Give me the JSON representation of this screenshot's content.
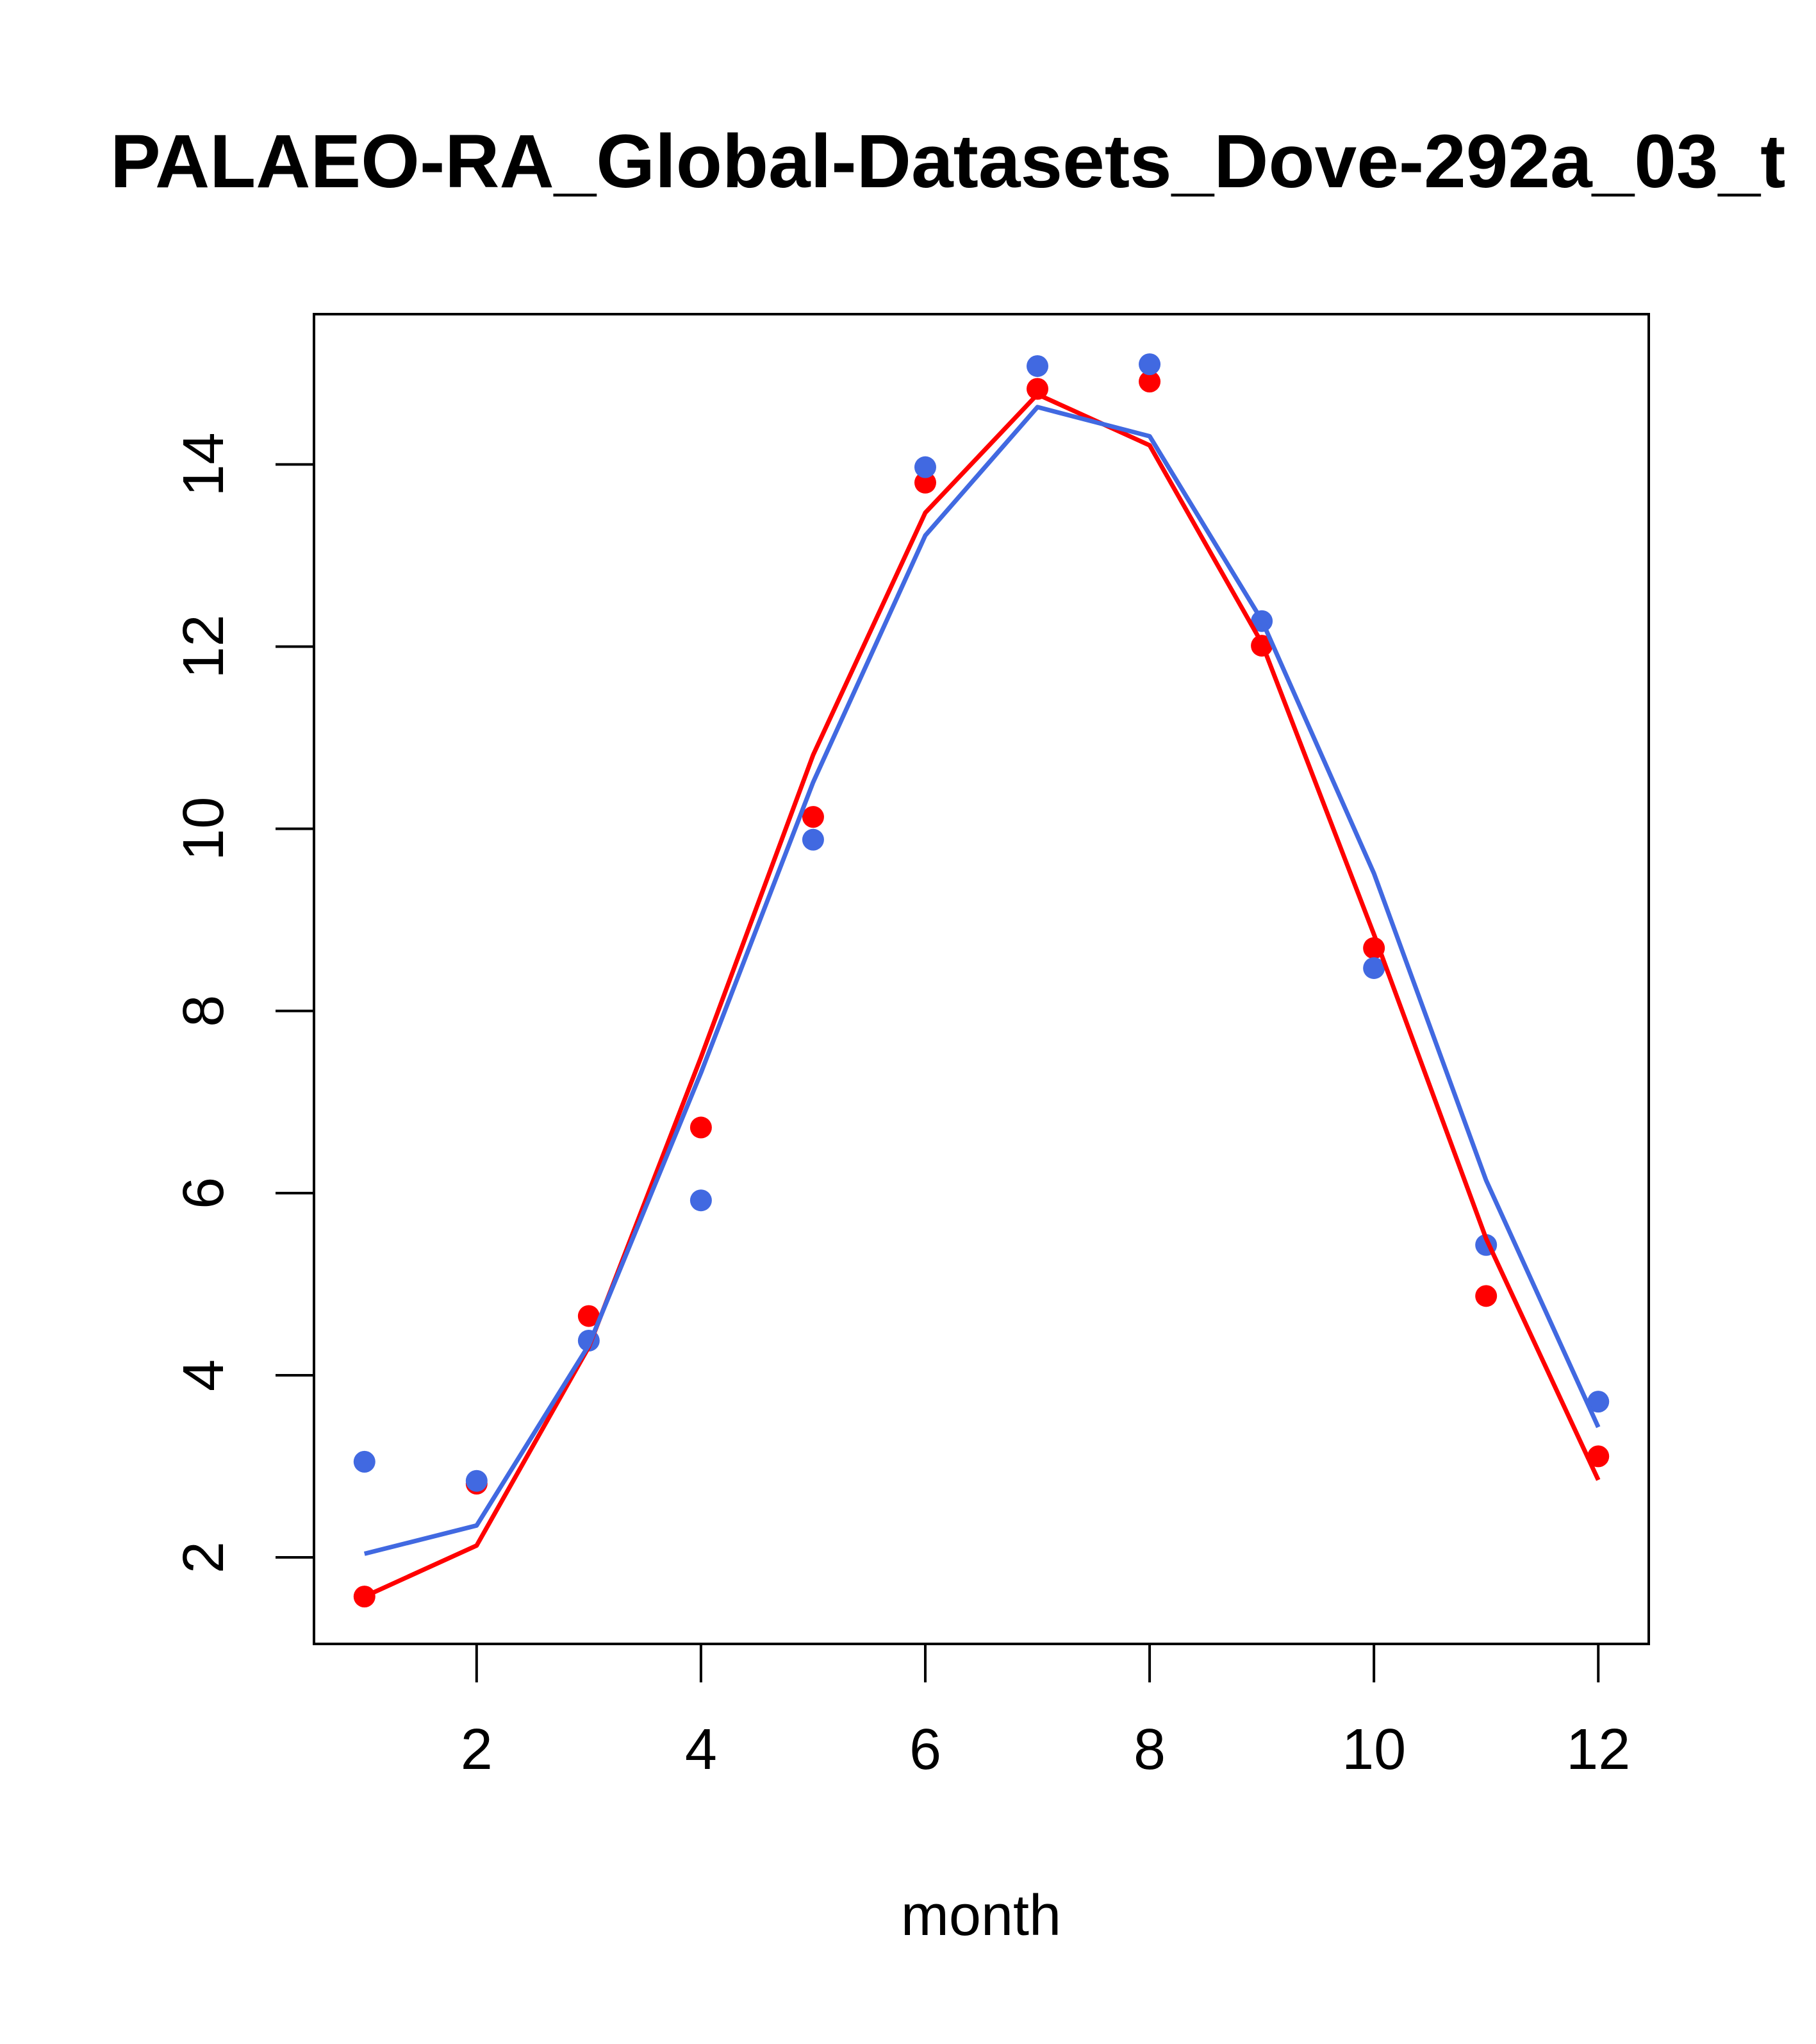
{
  "chart_data": {
    "type": "line",
    "title": "PALAEO-RA_Global-Datasets_Dove-292a_03_t",
    "xlabel": "month",
    "ylabel": "",
    "xlim": [
      0.55,
      12.45
    ],
    "ylim": [
      1.05,
      15.65
    ],
    "x_ticks": [
      2,
      4,
      6,
      8,
      10,
      12
    ],
    "y_ticks": [
      2,
      4,
      6,
      8,
      10,
      12,
      14
    ],
    "x_tick_labels": [
      "2",
      "4",
      "6",
      "8",
      "10",
      "12"
    ],
    "y_tick_labels": [
      "2",
      "4",
      "6",
      "8",
      "10",
      "12",
      "14"
    ],
    "x": [
      1,
      2,
      3,
      4,
      5,
      6,
      7,
      8,
      9,
      10,
      11,
      12
    ],
    "series": [
      {
        "color": "#ff0000",
        "points": [
          1.57,
          2.81,
          4.65,
          6.72,
          10.13,
          13.8,
          14.83,
          14.91,
          12.01,
          8.69,
          4.87,
          3.11
        ],
        "line": [
          1.57,
          2.13,
          4.31,
          7.49,
          10.81,
          13.47,
          14.77,
          14.21,
          12.04,
          8.84,
          5.5,
          2.85
        ]
      },
      {
        "color": "#4169e1",
        "points": [
          3.05,
          2.84,
          4.38,
          5.92,
          9.88,
          13.97,
          15.08,
          15.1,
          12.28,
          8.47,
          5.43,
          3.71
        ],
        "line": [
          2.04,
          2.35,
          4.33,
          7.32,
          10.51,
          13.22,
          14.63,
          14.31,
          12.29,
          9.51,
          6.14,
          3.43
        ]
      }
    ]
  }
}
